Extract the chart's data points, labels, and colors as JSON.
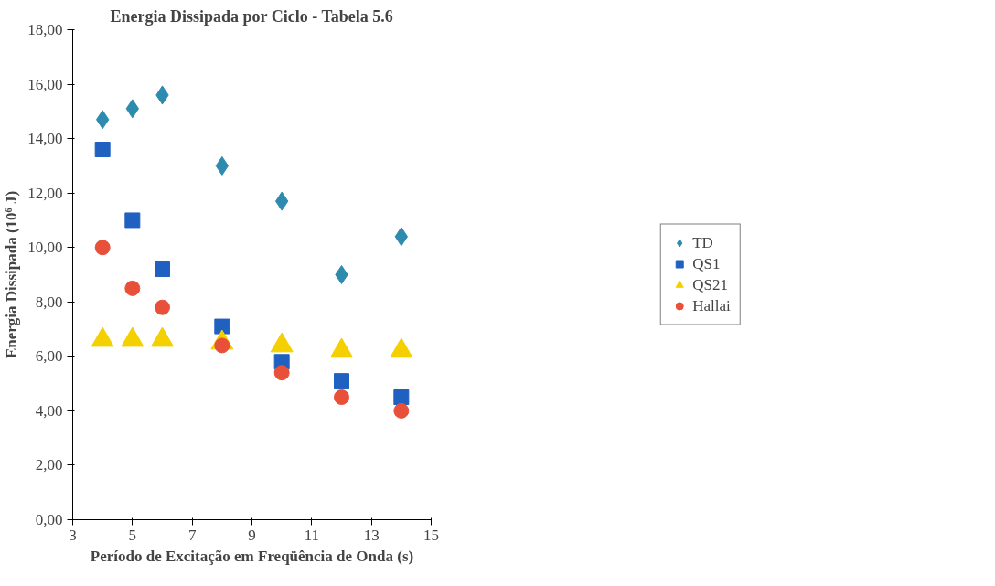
{
  "chart_data": {
    "type": "scatter",
    "title": "Energia Dissipada por Ciclo - Tabela 5.6",
    "xlabel": "Período de Excitação em Freqüência de Onda (s)",
    "ylabel": "Energia Dissipada (10⁶ J)",
    "x": [
      4,
      5,
      6,
      8,
      10,
      12,
      14
    ],
    "series": [
      {
        "name": "TD",
        "color": "#2e8bb0",
        "marker": "diamond",
        "values": [
          14.7,
          15.1,
          15.6,
          13.0,
          11.7,
          9.0,
          10.4
        ]
      },
      {
        "name": "QS1",
        "color": "#2060c0",
        "marker": "square",
        "values": [
          13.6,
          11.0,
          9.2,
          7.1,
          5.8,
          5.1,
          4.5
        ]
      },
      {
        "name": "QS21",
        "color": "#f5d000",
        "marker": "triangle",
        "values": [
          6.6,
          6.6,
          6.6,
          6.5,
          6.4,
          6.2,
          6.2
        ]
      },
      {
        "name": "Hallai",
        "color": "#e8503a",
        "marker": "circle",
        "values": [
          10.0,
          8.5,
          7.8,
          6.4,
          5.4,
          4.5,
          4.0
        ]
      }
    ],
    "xlim": [
      3,
      15
    ],
    "xticks": [
      3,
      5,
      7,
      9,
      11,
      13,
      15
    ],
    "ylim": [
      0,
      18
    ],
    "yticks": [
      {
        "value": 0,
        "label": "0,00"
      },
      {
        "value": 2,
        "label": "2,00"
      },
      {
        "value": 4,
        "label": "4,00"
      },
      {
        "value": 6,
        "label": "6,00"
      },
      {
        "value": 8,
        "label": "8,00"
      },
      {
        "value": 10,
        "label": "10,00"
      },
      {
        "value": 12,
        "label": "12,00"
      },
      {
        "value": 14,
        "label": "14,00"
      },
      {
        "value": 16,
        "label": "16,00"
      },
      {
        "value": 18,
        "label": "18,00"
      }
    ],
    "grid": false,
    "legend": "right"
  }
}
